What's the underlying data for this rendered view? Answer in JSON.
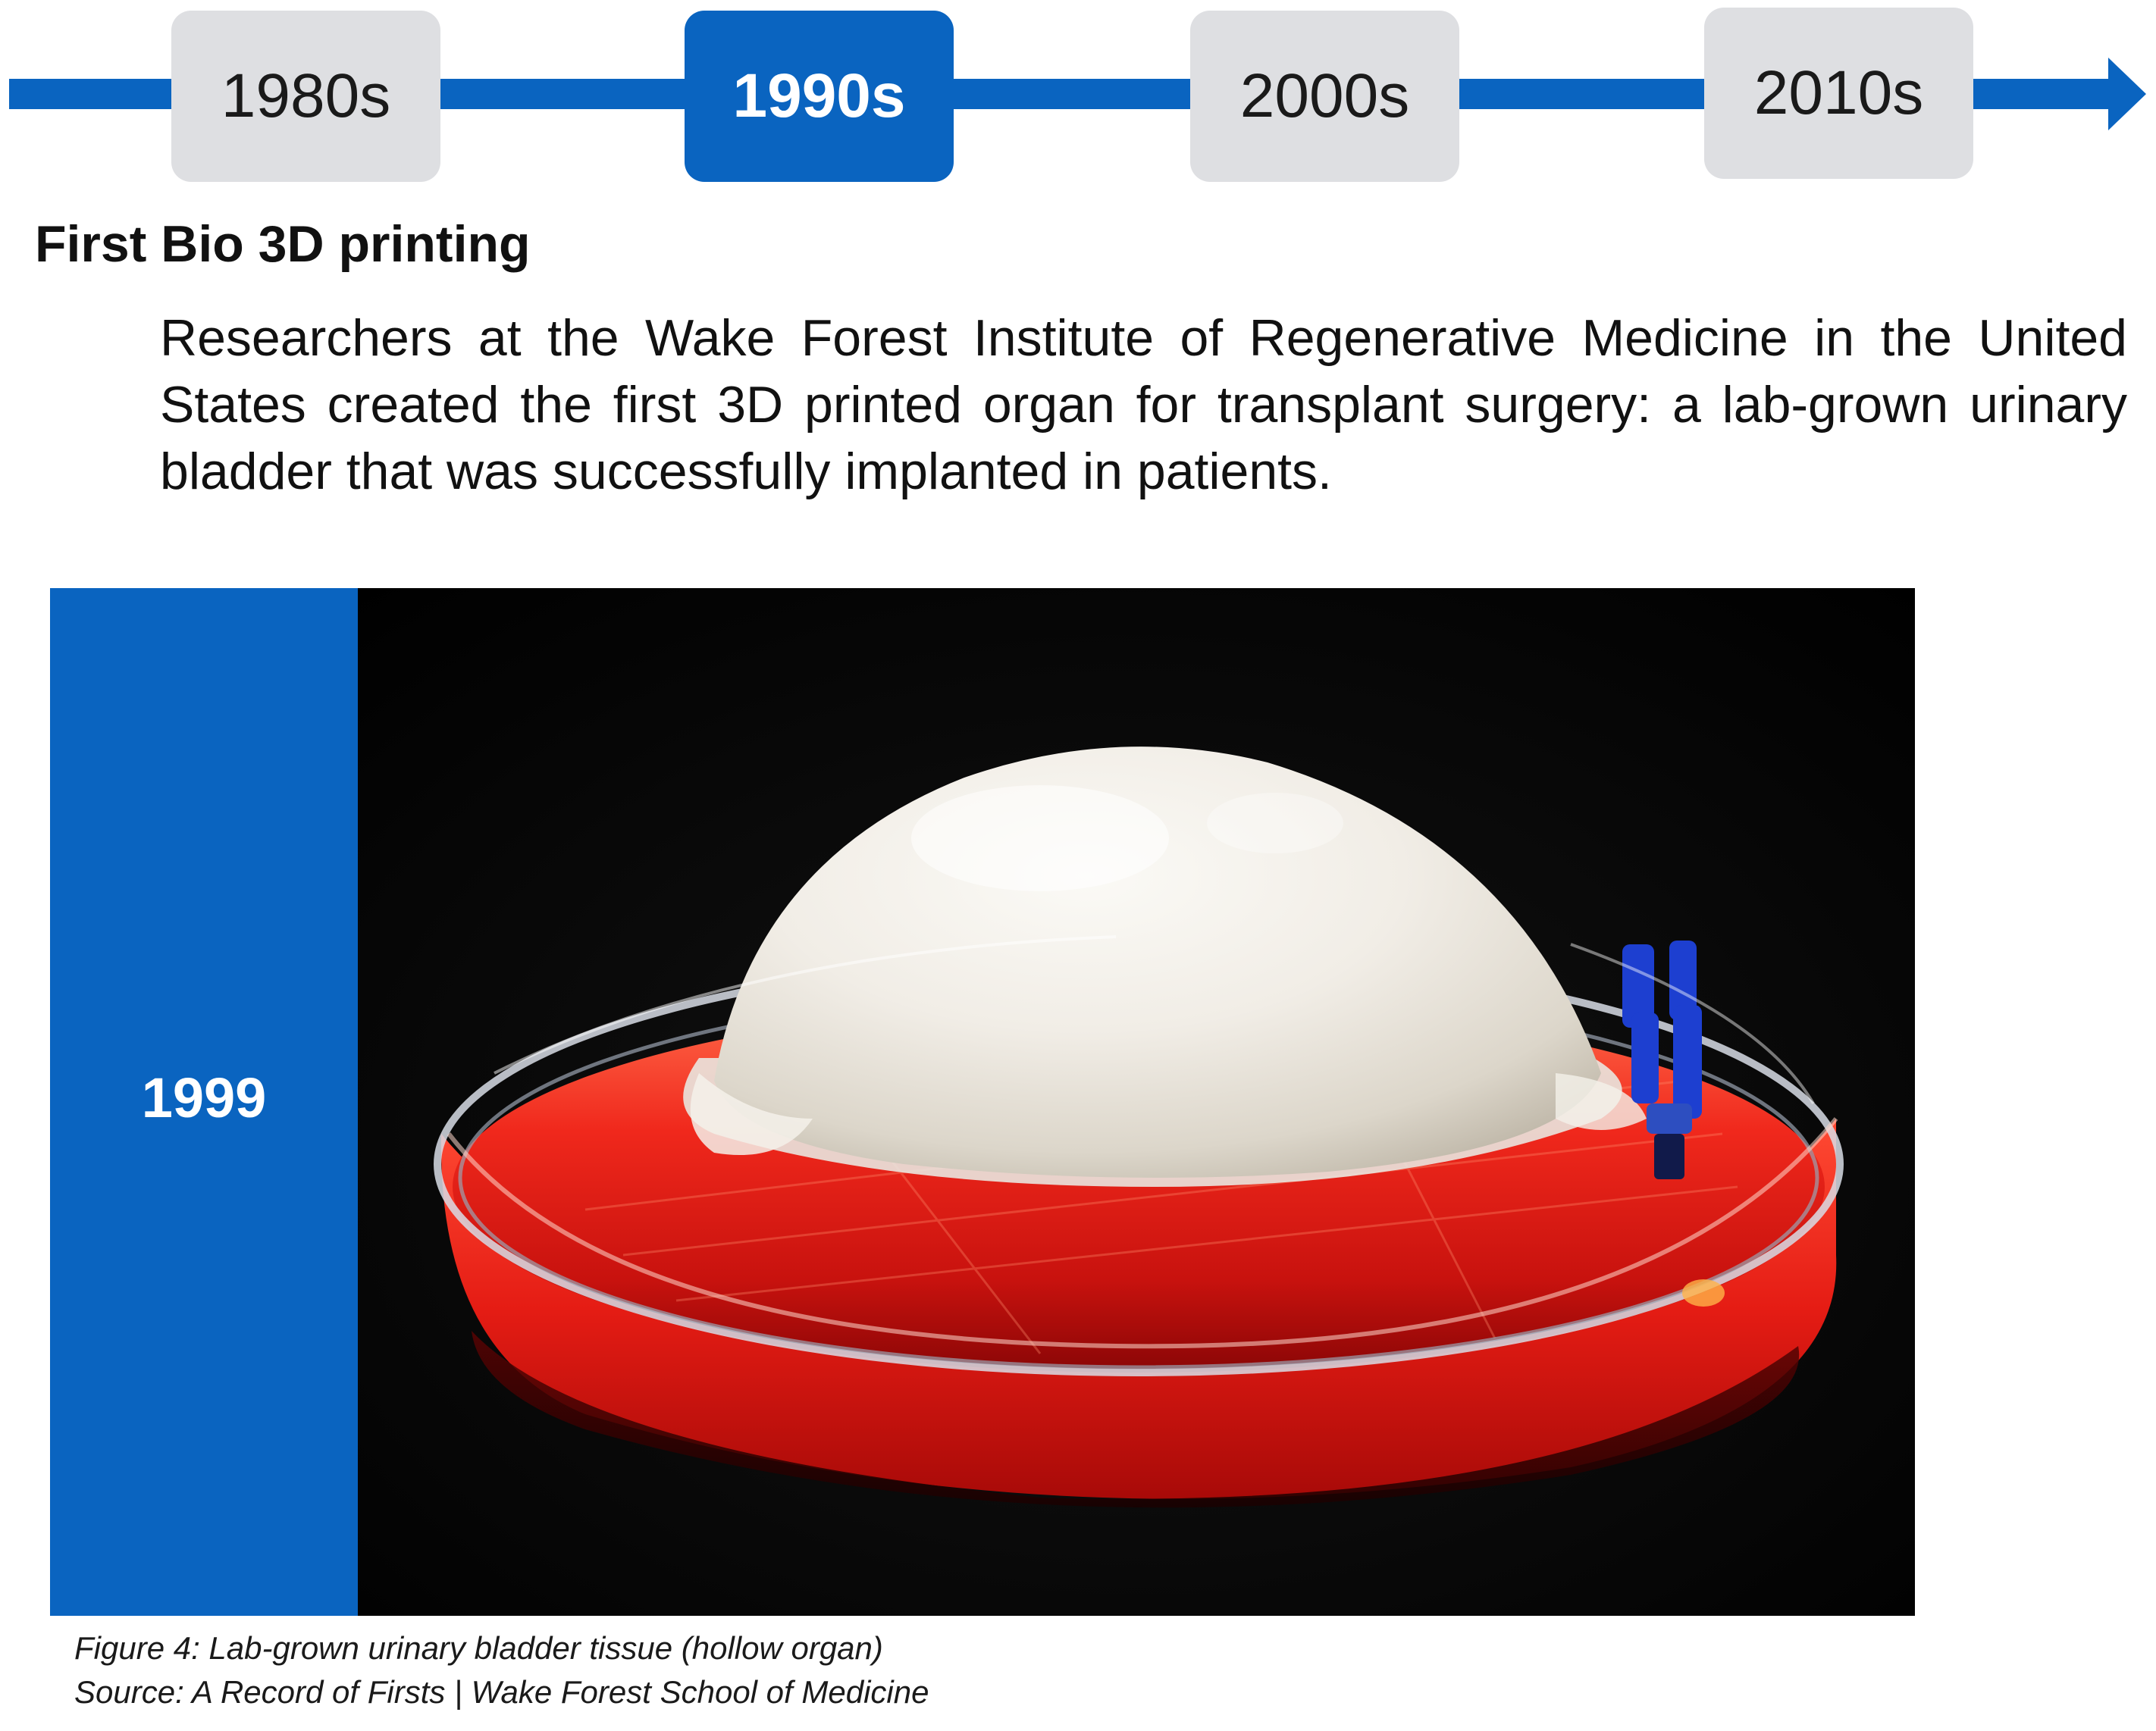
{
  "timeline": {
    "eras": [
      {
        "label": "1980s",
        "active": false
      },
      {
        "label": "1990s",
        "active": true
      },
      {
        "label": "2000s",
        "active": false
      },
      {
        "label": "2010s",
        "active": false
      }
    ]
  },
  "section": {
    "heading": "First Bio 3D printing",
    "body": "Researchers at the Wake Forest Institute of Regenerative Medicine in the United States created the first 3D printed organ for transplant surgery: a lab-grown urinary bladder that was successfully implanted in patients."
  },
  "figure": {
    "year": "1999",
    "caption": "Figure 4: Lab-grown urinary bladder tissue (hollow organ)",
    "source": "Source: A Record of Firsts | Wake Forest School of Medicine"
  },
  "colors": {
    "accent": "#0a64c0",
    "inactive_era": "#dedfe2",
    "photo_background": "#000000",
    "liquid": "#e8231c"
  }
}
